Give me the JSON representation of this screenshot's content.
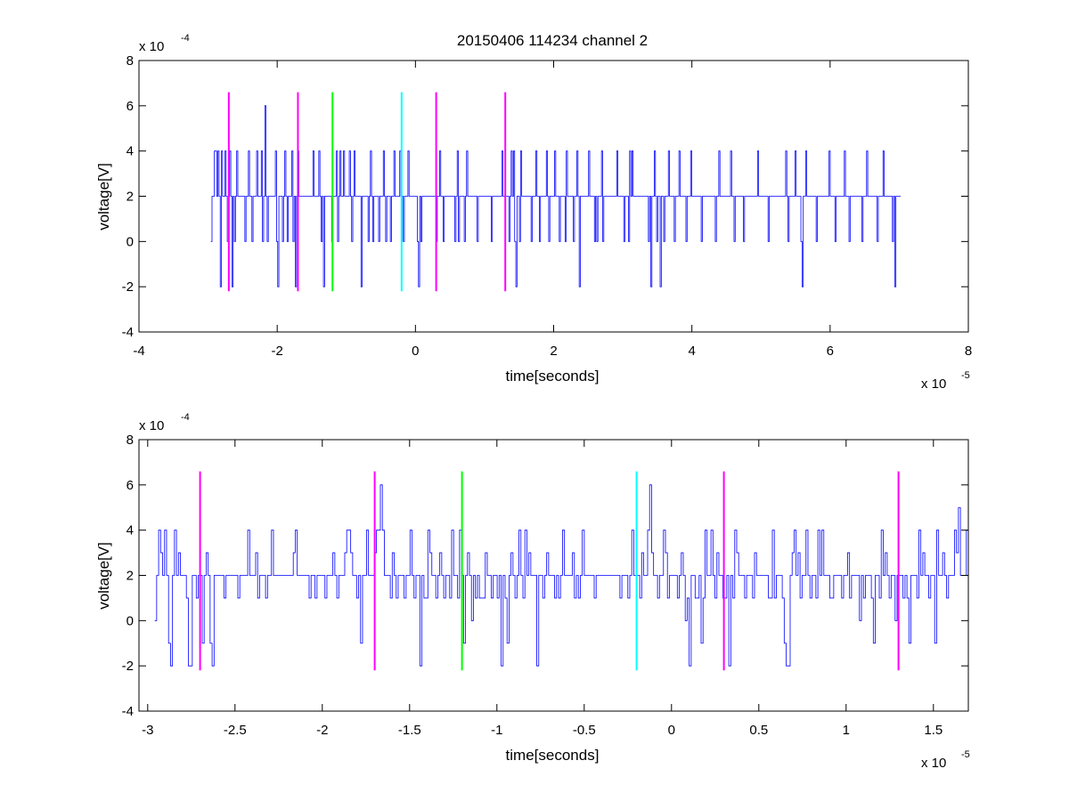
{
  "chart_data": [
    {
      "type": "line",
      "title": "20150406 114234 channel 2",
      "xlabel": "time[seconds]",
      "ylabel": "voltage[V]",
      "x_multiplier": {
        "base": "x 10",
        "exp": "-5"
      },
      "y_multiplier": {
        "base": "x 10",
        "exp": "-4"
      },
      "xlim": [
        -4e-05,
        8e-05
      ],
      "ylim": [
        -0.0004,
        0.0008
      ],
      "x_tick_values": [
        -4e-05,
        -2e-05,
        0,
        2e-05,
        4e-05,
        6e-05,
        8e-05
      ],
      "x_tick_labels": [
        "-4",
        "-2",
        "0",
        "2",
        "4",
        "6",
        "8"
      ],
      "y_tick_values": [
        -0.0004,
        -0.0002,
        0,
        0.0002,
        0.0004,
        0.0006,
        0.0008
      ],
      "y_tick_labels": [
        "-4",
        "-2",
        "0",
        "2",
        "4",
        "6",
        "8"
      ],
      "grid": false,
      "series": [
        {
          "color": "#0000ff",
          "x_start": -2.96e-05,
          "x_end": 7.02e-05,
          "sample_step": 2e-07,
          "y_level_step": 0.0002,
          "levels": [
            0,
            1,
            1,
            2,
            2,
            1,
            2,
            1,
            -1,
            2,
            1,
            1,
            2,
            1,
            0,
            1,
            2,
            1,
            -1,
            1,
            0,
            1,
            2,
            1,
            1,
            1,
            1,
            1,
            1,
            0,
            1,
            1,
            2,
            1,
            1,
            0,
            1,
            1,
            1,
            2,
            1,
            1,
            1,
            2,
            0,
            1,
            3,
            1,
            0,
            1,
            1,
            1,
            1,
            1,
            1,
            2,
            0,
            -1,
            1,
            1,
            1,
            0,
            1,
            2,
            1,
            0,
            1,
            1,
            1,
            2,
            0,
            1,
            -1,
            1,
            2,
            1,
            1,
            1,
            1,
            1,
            1,
            1,
            1,
            1,
            1,
            1,
            1,
            2,
            1,
            1,
            1,
            1,
            2,
            1,
            0,
            1,
            -1,
            1,
            1,
            1,
            1,
            1,
            1,
            0,
            1,
            1,
            1,
            2,
            0,
            1,
            2,
            1,
            1,
            2,
            1,
            1,
            1,
            1,
            2,
            1,
            0,
            1,
            2,
            1,
            1,
            1,
            1,
            1,
            -1,
            1,
            1,
            1,
            1,
            1,
            0,
            1,
            2,
            1,
            0,
            1,
            1,
            1,
            1,
            0,
            1,
            1,
            1,
            2,
            1,
            0,
            1,
            1,
            1,
            0,
            1,
            1,
            2,
            1,
            1,
            1,
            1,
            2,
            1,
            1,
            0,
            1,
            1,
            1,
            2,
            1,
            1,
            1,
            1,
            1,
            1,
            1,
            0,
            -1,
            1,
            0,
            1,
            1,
            1,
            1,
            1,
            1,
            1,
            1,
            1,
            1,
            1,
            1,
            0,
            1,
            1,
            2,
            1,
            1,
            0,
            1,
            1,
            1,
            1,
            1,
            1,
            1,
            1,
            1,
            0,
            1,
            2,
            0,
            1,
            1,
            1,
            1,
            0,
            1,
            2,
            1,
            1,
            1,
            1,
            1,
            1,
            1,
            1,
            0,
            1,
            1,
            1,
            1,
            1,
            1,
            1,
            1,
            1,
            1,
            1,
            0,
            1,
            1,
            1,
            1,
            1,
            1,
            1,
            1,
            2,
            1,
            1,
            1,
            1,
            1,
            0,
            1,
            2,
            1,
            2,
            0,
            -1,
            1,
            1,
            0,
            2,
            1,
            1,
            1,
            1,
            1,
            1,
            1,
            1,
            0,
            1,
            1,
            1,
            2,
            1,
            1,
            0,
            1,
            1,
            1,
            1,
            1,
            2,
            1,
            0,
            1,
            1,
            1,
            1,
            2,
            1,
            1,
            1,
            0,
            1,
            1,
            1,
            1,
            0,
            2,
            1,
            1,
            1,
            1,
            1,
            0,
            1,
            1,
            2,
            1,
            -1,
            1,
            1,
            1,
            1,
            1,
            1,
            1,
            2,
            1,
            1,
            1,
            1,
            0,
            1,
            0,
            1,
            1,
            1,
            2,
            0,
            1,
            1,
            1,
            1,
            1,
            1,
            1,
            1,
            1,
            1,
            1,
            2,
            1,
            1,
            1,
            1,
            1,
            0,
            1,
            1,
            1,
            0,
            2,
            1,
            2,
            1,
            1,
            1,
            1,
            1,
            1,
            1,
            1,
            1,
            1,
            1,
            1,
            1,
            0,
            1,
            -1,
            1,
            1,
            2,
            1,
            0,
            1,
            1,
            -1,
            1,
            1,
            0,
            1,
            1,
            1,
            2,
            1,
            1,
            1,
            1,
            0,
            1,
            1,
            1,
            2,
            1,
            1,
            1,
            1,
            1,
            0,
            1,
            1,
            1,
            2,
            1,
            1,
            1,
            1,
            1,
            1,
            1,
            1,
            0,
            1,
            1,
            1,
            1,
            1,
            1,
            1,
            1,
            1,
            1,
            1,
            0,
            1,
            1,
            2,
            1,
            1,
            1,
            1,
            1,
            1,
            1,
            1,
            1,
            2,
            1,
            1,
            0,
            1,
            1,
            1,
            1,
            1,
            1,
            1,
            0,
            1,
            1,
            1,
            1,
            1,
            1,
            1,
            1,
            1,
            1,
            1,
            2,
            1,
            1,
            1,
            1,
            1,
            1,
            1,
            1,
            0,
            1,
            1,
            1,
            1,
            1,
            1,
            1,
            1,
            1,
            1,
            1,
            1,
            1,
            1,
            2,
            1,
            0,
            1,
            1,
            1,
            1,
            1,
            2,
            1,
            1,
            1,
            1,
            0,
            -1,
            1,
            1,
            2,
            1,
            1,
            1,
            1,
            1,
            1,
            1,
            1,
            0,
            1,
            1,
            1,
            1,
            1,
            1,
            1,
            1,
            1,
            1,
            2,
            1,
            1,
            1,
            1,
            0,
            1,
            1,
            1,
            1,
            1,
            1,
            1,
            2,
            1,
            1,
            1,
            0,
            1,
            1,
            1,
            1,
            1,
            1,
            1,
            1,
            1,
            1,
            0,
            1,
            1,
            1,
            2,
            1,
            1,
            1,
            1,
            1,
            1,
            1,
            1,
            0,
            1,
            1,
            1,
            1,
            2,
            1,
            1,
            1,
            1,
            1,
            1,
            1,
            0,
            1,
            -1,
            1,
            1,
            1,
            1,
            1
          ]
        }
      ],
      "markers": [
        {
          "x": -2.7e-05,
          "color": "#ff00ff",
          "y_range": [
            -0.00022,
            0.00066
          ]
        },
        {
          "x": -1.7e-05,
          "color": "#ff00ff",
          "y_range": [
            -0.00022,
            0.00066
          ]
        },
        {
          "x": -1.2e-05,
          "color": "#00ff00",
          "y_range": [
            -0.00022,
            0.00066
          ]
        },
        {
          "x": -2e-06,
          "color": "#00ffff",
          "y_range": [
            -0.00022,
            0.00066
          ]
        },
        {
          "x": 3e-06,
          "color": "#ff00ff",
          "y_range": [
            -0.00022,
            0.00066
          ]
        },
        {
          "x": 1.3e-05,
          "color": "#ff00ff",
          "y_range": [
            -0.00022,
            0.00066
          ]
        }
      ]
    },
    {
      "type": "line",
      "title": "",
      "xlabel": "time[seconds]",
      "ylabel": "voltage[V]",
      "x_multiplier": {
        "base": "x 10",
        "exp": "-5"
      },
      "y_multiplier": {
        "base": "x 10",
        "exp": "-4"
      },
      "xlim": [
        -3.05e-05,
        1.7e-05
      ],
      "ylim": [
        -0.0004,
        0.0008
      ],
      "x_tick_values": [
        -3e-05,
        -2.5e-05,
        -2e-05,
        -1.5e-05,
        -1e-05,
        -5e-06,
        0,
        5e-06,
        1e-05,
        1.5e-05
      ],
      "x_tick_labels": [
        "-3",
        "-2.5",
        "-2",
        "-1.5",
        "-1",
        "-0.5",
        "0",
        "0.5",
        "1",
        "1.5"
      ],
      "y_tick_values": [
        -0.0004,
        -0.0002,
        0,
        0.0002,
        0.0004,
        0.0006,
        0.0008
      ],
      "y_tick_labels": [
        "-4",
        "-2",
        "0",
        "2",
        "4",
        "6",
        "8"
      ],
      "grid": false,
      "series": [
        {
          "color": "#0000ff",
          "x_start": -2.96e-05,
          "x_end": 1.7e-05,
          "sample_step": 1e-07,
          "y_level_step": 0.0001,
          "levels": [
            0,
            2,
            4,
            3,
            2,
            4,
            2,
            -1,
            -2,
            2,
            4,
            2,
            3,
            2,
            2,
            2,
            1,
            -2,
            -2,
            2,
            2,
            1,
            2,
            2,
            -1,
            2,
            3,
            2,
            -1,
            -2,
            2,
            2,
            2,
            2,
            2,
            1,
            2,
            2,
            2,
            2,
            2,
            2,
            1,
            2,
            2,
            2,
            2,
            4,
            2,
            2,
            2,
            3,
            1,
            2,
            2,
            2,
            1,
            2,
            2,
            4,
            2,
            2,
            2,
            2,
            2,
            2,
            2,
            2,
            2,
            2,
            3,
            4,
            2,
            2,
            2,
            2,
            2,
            2,
            1,
            2,
            2,
            1,
            2,
            2,
            2,
            2,
            1,
            2,
            2,
            2,
            3,
            2,
            1,
            2,
            2,
            2,
            3,
            4,
            4,
            3,
            2,
            2,
            1,
            2,
            -1,
            2,
            2,
            4,
            2,
            2,
            2,
            3,
            4,
            4,
            6,
            4,
            2,
            2,
            2,
            1,
            3,
            2,
            1,
            2,
            2,
            2,
            1,
            2,
            2,
            4,
            2,
            1,
            2,
            2,
            -2,
            2,
            1,
            1,
            4,
            3,
            2,
            2,
            1,
            2,
            3,
            2,
            1,
            2,
            2,
            1,
            4,
            2,
            2,
            1,
            4,
            2,
            -1,
            2,
            3,
            2,
            0,
            2,
            1,
            2,
            1,
            1,
            1,
            3,
            2,
            2,
            1,
            2,
            2,
            1,
            2,
            -2,
            2,
            1,
            -1,
            2,
            3,
            2,
            1,
            2,
            4,
            2,
            1,
            4,
            2,
            3,
            2,
            2,
            2,
            -2,
            2,
            2,
            1,
            2,
            3,
            2,
            2,
            2,
            1,
            2,
            1,
            2,
            4,
            2,
            2,
            2,
            2,
            3,
            1,
            2,
            1,
            2,
            4,
            2,
            2,
            2,
            2,
            2,
            1,
            2,
            2,
            2,
            2,
            2,
            2,
            2,
            2,
            2,
            2,
            2,
            2,
            1,
            2,
            2,
            2,
            1,
            2,
            4,
            2,
            2,
            2,
            1,
            3,
            2,
            2,
            4,
            6,
            3,
            2,
            2,
            1,
            2,
            2,
            4,
            3,
            1,
            2,
            2,
            2,
            2,
            1,
            2,
            3,
            2,
            0,
            1,
            -2,
            2,
            2,
            1,
            1,
            2,
            -1,
            1,
            4,
            2,
            2,
            4,
            2,
            1,
            3,
            2,
            2,
            1,
            1,
            2,
            -2,
            2,
            1,
            4,
            3,
            2,
            2,
            2,
            1,
            2,
            2,
            2,
            1,
            3,
            2,
            2,
            2,
            2,
            2,
            2,
            1,
            1,
            4,
            1,
            2,
            2,
            2,
            1,
            -1,
            -2,
            -2,
            2,
            3,
            4,
            2,
            3,
            1,
            2,
            2,
            4,
            2,
            1,
            2,
            2,
            1,
            4,
            2,
            4,
            2,
            2,
            2,
            1,
            1,
            2,
            2,
            2,
            2,
            1,
            2,
            2,
            3,
            1,
            2,
            2,
            2,
            2,
            0,
            2,
            1,
            2,
            2,
            2,
            1,
            -1,
            2,
            2,
            1,
            4,
            2,
            3,
            2,
            1,
            2,
            2,
            0,
            2,
            2,
            2,
            1,
            2,
            1,
            -1,
            2,
            2,
            2,
            1,
            4,
            2,
            3,
            2,
            2,
            1,
            2,
            2,
            -1,
            4,
            2,
            2,
            3,
            2,
            1,
            2,
            2,
            2,
            4,
            3,
            5,
            2,
            2,
            2,
            4,
            4
          ]
        }
      ],
      "markers": [
        {
          "x": -2.7e-05,
          "color": "#ff00ff",
          "y_range": [
            -0.00022,
            0.00066
          ]
        },
        {
          "x": -1.7e-05,
          "color": "#ff00ff",
          "y_range": [
            -0.00022,
            0.00066
          ]
        },
        {
          "x": -1.2e-05,
          "color": "#00ff00",
          "y_range": [
            -0.00022,
            0.00066
          ]
        },
        {
          "x": -2e-06,
          "color": "#00ffff",
          "y_range": [
            -0.00022,
            0.00066
          ]
        },
        {
          "x": 3e-06,
          "color": "#ff00ff",
          "y_range": [
            -0.00022,
            0.00066
          ]
        },
        {
          "x": 1.3e-05,
          "color": "#ff00ff",
          "y_range": [
            -0.00022,
            0.00066
          ]
        }
      ]
    }
  ]
}
